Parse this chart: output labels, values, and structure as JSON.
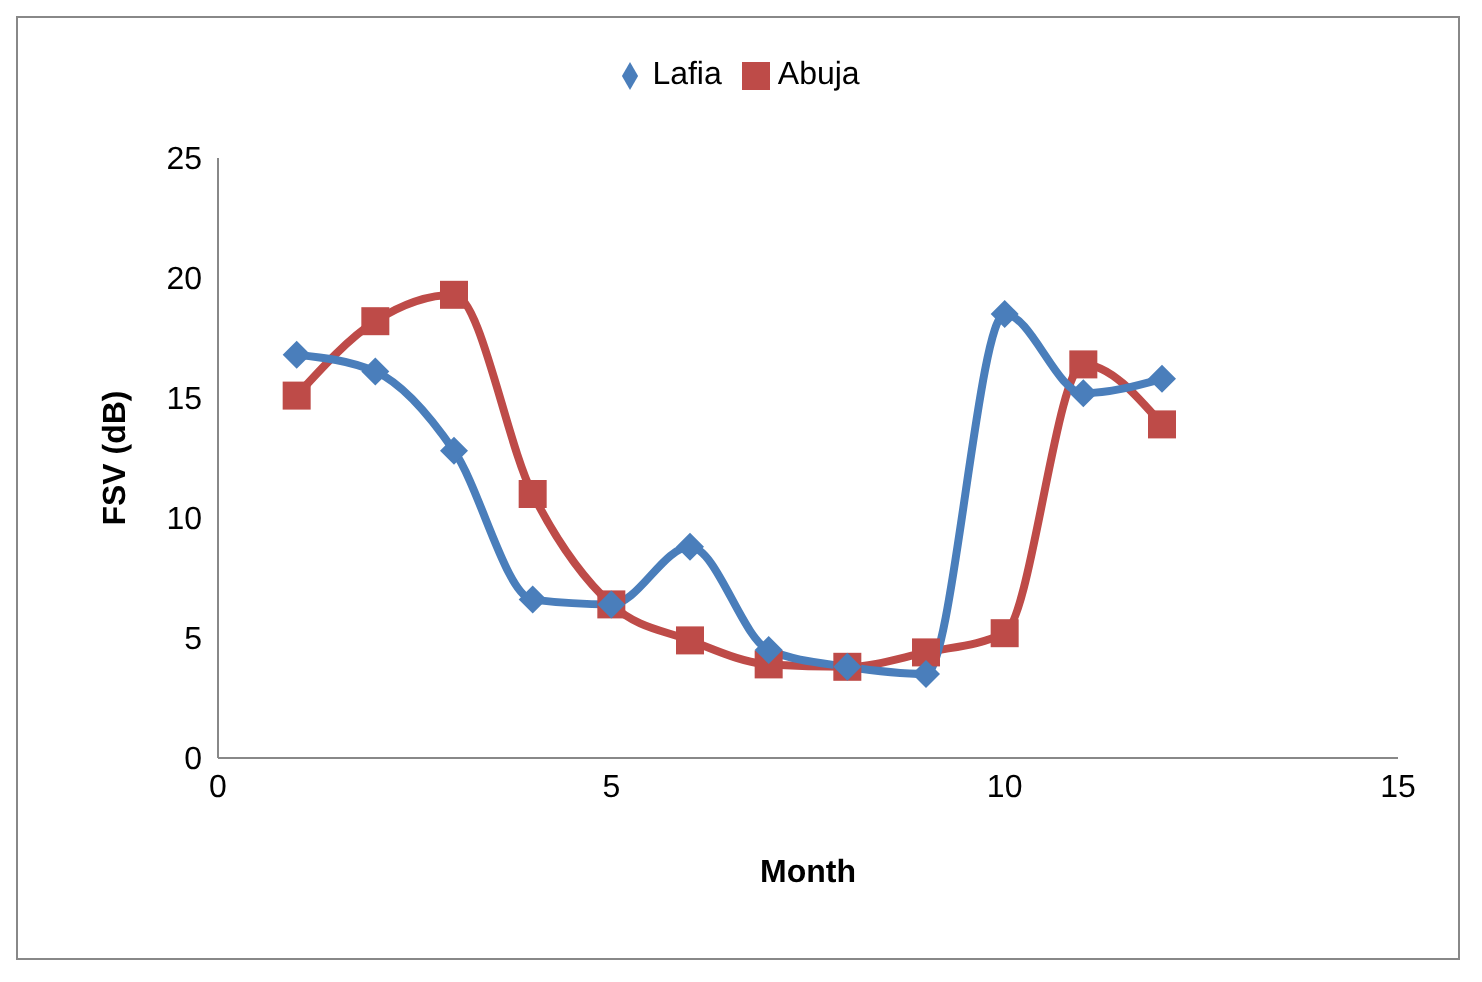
{
  "chart_data": {
    "type": "line",
    "xlabel": "Month",
    "ylabel": "FSV (dB)",
    "x": [
      1,
      2,
      3,
      4,
      5,
      6,
      7,
      8,
      9,
      10,
      11,
      12
    ],
    "series": [
      {
        "name": "Lafia",
        "color": "#4a7ebb",
        "marker": "diamond",
        "values": [
          16.8,
          16.1,
          12.8,
          6.6,
          6.4,
          8.8,
          4.5,
          3.8,
          3.5,
          18.5,
          15.2,
          15.8
        ]
      },
      {
        "name": "Abuja",
        "color": "#be4b48",
        "marker": "square",
        "values": [
          15.1,
          18.2,
          19.3,
          11.0,
          6.4,
          4.9,
          3.9,
          3.8,
          4.4,
          5.2,
          16.4,
          13.9
        ]
      }
    ],
    "xlim": [
      0,
      15
    ],
    "xticks": [
      0,
      5,
      10,
      15
    ],
    "ylim": [
      0,
      25
    ],
    "yticks": [
      0,
      5,
      10,
      15,
      20,
      25
    ],
    "grid": false,
    "legend": "top",
    "line_style": "solid"
  }
}
